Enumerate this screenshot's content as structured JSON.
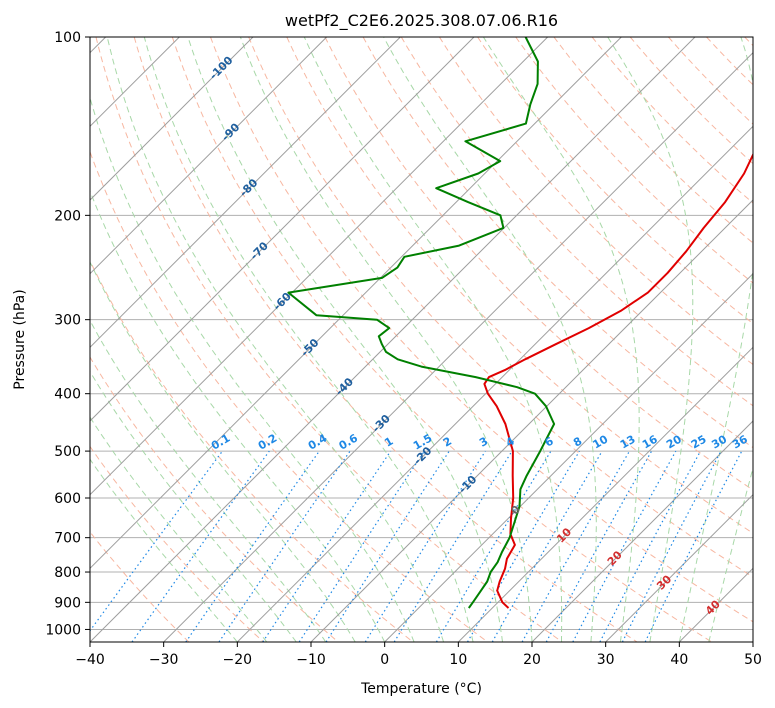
{
  "chart_data": {
    "type": "line",
    "title": "wetPf2_C2E6.2025.308.07.06.R16",
    "xlabel": "Temperature (°C)",
    "ylabel": "Pressure (hPa)",
    "xlim": [
      -40,
      50
    ],
    "ylim": [
      1050,
      100
    ],
    "y_scale": "log",
    "grid": true,
    "x_ticks": [
      -40,
      -30,
      -20,
      -10,
      0,
      10,
      20,
      30,
      40,
      50
    ],
    "y_ticks": [
      100,
      200,
      300,
      400,
      500,
      600,
      700,
      800,
      900,
      1000
    ],
    "colors": {
      "temperature": "#e00000",
      "dewpoint": "#008000",
      "isotherm": "#9e9e9e",
      "dry_adiabat": "#f7b7a1",
      "moist_adiabat": "#a8d8a8",
      "mixing_ratio": "#1e88e5",
      "isotherm_label": "#1f5f9e",
      "warm_label": "#d32f2f",
      "zero_label": "#666666"
    },
    "series": [
      {
        "key": "temperature",
        "pressure": [
          920,
          900,
          860,
          830,
          790,
          760,
          720,
          690,
          650,
          600,
          550,
          500,
          450,
          420,
          400,
          385,
          375,
          365,
          350,
          330,
          310,
          290,
          270,
          250,
          230,
          210,
          190,
          170,
          155,
          140,
          130,
          120,
          110,
          100
        ],
        "temp": [
          12.2,
          10.6,
          8.3,
          7.4,
          6.4,
          5.3,
          4.5,
          2.4,
          0.4,
          -2.1,
          -5.2,
          -8.5,
          -13.2,
          -16.8,
          -19.7,
          -21.5,
          -21.8,
          -20.6,
          -19.3,
          -17.2,
          -14.9,
          -12.9,
          -11.7,
          -11.7,
          -12.1,
          -12.9,
          -13.5,
          -14.8,
          -16.5,
          -17.6,
          -19.0,
          -20.4,
          -21.2,
          -21.7
        ]
      },
      {
        "key": "dewpoint",
        "pressure": [
          920,
          900,
          860,
          830,
          800,
          770,
          740,
          700,
          660,
          620,
          580,
          550,
          500,
          450,
          420,
          400,
          390,
          375,
          360,
          350,
          340,
          330,
          320,
          310,
          300,
          295,
          270,
          255,
          245,
          235,
          225,
          210,
          200,
          190,
          180,
          170,
          162,
          150,
          140,
          130,
          120,
          110,
          100
        ],
        "temp": [
          6.8,
          6.6,
          6.1,
          5.7,
          4.9,
          4.5,
          3.7,
          2.8,
          1.4,
          -0.1,
          -2.3,
          -3.3,
          -4.8,
          -6.6,
          -10.1,
          -13.3,
          -16.6,
          -23.6,
          -32.4,
          -36.6,
          -39.2,
          -40.8,
          -42.3,
          -42.0,
          -44.8,
          -53.6,
          -60.5,
          -49.8,
          -49.1,
          -49.6,
          -43.7,
          -40.1,
          -42.2,
          -48.4,
          -54.6,
          -50.9,
          -49.6,
          -57.0,
          -51.2,
          -53.2,
          -55.0,
          -58.0,
          -63.0
        ]
      }
    ],
    "mixing_ratio_labels": [
      "0.1",
      "0.2",
      "0.4",
      "0.6",
      "1",
      "1.5",
      "2",
      "3",
      "4",
      "6",
      "8",
      "10",
      "13",
      "16",
      "20",
      "25",
      "30",
      "36"
    ],
    "isotherm_labels": [
      "-100",
      "-90",
      "-80",
      "-70",
      "-60",
      "-50",
      "-40",
      "-30",
      "-20",
      "-10",
      "0",
      "10",
      "20",
      "30",
      "40"
    ]
  }
}
